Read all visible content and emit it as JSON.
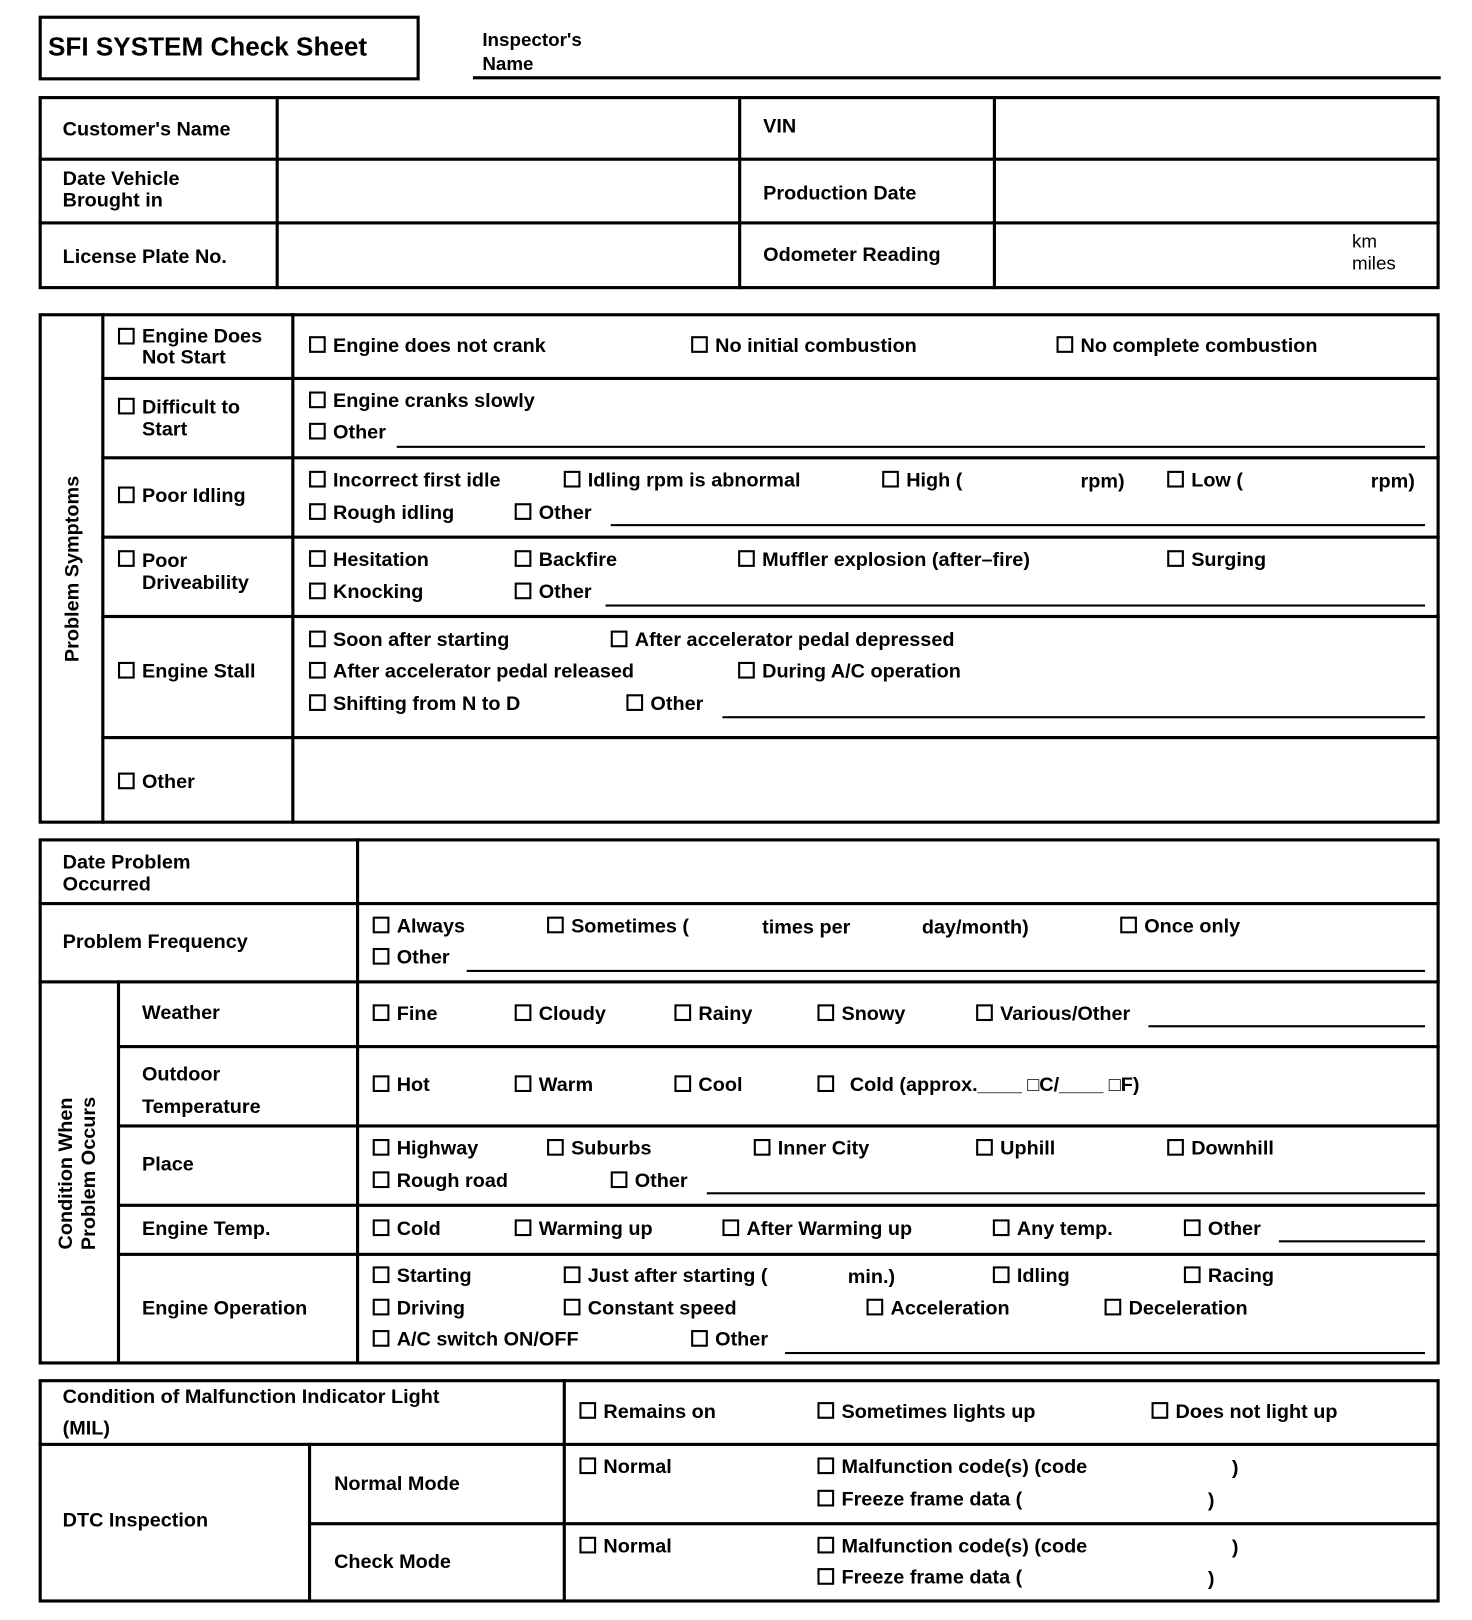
{
  "header": {
    "title": "SFI SYSTEM Check Sheet",
    "inspector_label": "Inspector's\nName"
  },
  "vehicle": {
    "customer_name": "Customer's Name",
    "vin": "VIN",
    "date_brought_in": "Date Vehicle\nBrought in",
    "production_date": "Production Date",
    "license_plate": "License Plate No.",
    "odometer": "Odometer Reading",
    "odometer_units": "km\nmiles"
  },
  "symptoms": {
    "section_label": "Problem Symptoms",
    "does_not_start": {
      "label": "Engine Does\nNot Start",
      "items": [
        "Engine does not crank",
        "No initial combustion",
        "No complete combustion"
      ]
    },
    "difficult_start": {
      "label": "Difficult to\nStart",
      "items": [
        "Engine cranks slowly",
        "Other"
      ]
    },
    "poor_idling": {
      "label": "Poor Idling",
      "items": [
        "Incorrect first idle",
        "Idling rpm is abnormal",
        "High (",
        "rpm)",
        "Low (",
        "rpm)",
        "Rough idling",
        "Other"
      ]
    },
    "poor_driveability": {
      "label": "Poor\nDriveability",
      "items": [
        "Hesitation",
        "Backfire",
        "Muffler explosion (after–fire)",
        "Surging",
        "Knocking",
        "Other"
      ]
    },
    "engine_stall": {
      "label": "Engine Stall",
      "items": [
        "Soon after starting",
        "After accelerator pedal depressed",
        "After accelerator pedal released",
        "During A/C operation",
        "Shifting from N to D",
        "Other"
      ]
    },
    "other": {
      "label": "Other"
    }
  },
  "occurrence": {
    "date_label": "Date Problem\nOccurred",
    "frequency": {
      "label": "Problem Frequency",
      "items": [
        "Always",
        "Sometimes (",
        "times per",
        "day/month)",
        "Once only",
        "Other"
      ]
    },
    "condition_label": "Condition When\nProblem Occurs",
    "weather": {
      "label": "Weather",
      "items": [
        "Fine",
        "Cloudy",
        "Rainy",
        "Snowy",
        "Various/Other"
      ]
    },
    "outdoor_temp": {
      "label": "Outdoor\nTemperature",
      "items": [
        "Hot",
        "Warm",
        "Cool",
        "Cold (approx.____ □C/____ □F)"
      ]
    },
    "place": {
      "label": "Place",
      "items": [
        "Highway",
        "Suburbs",
        "Inner City",
        "Uphill",
        "Downhill",
        "Rough road",
        "Other"
      ]
    },
    "engine_temp": {
      "label": "Engine Temp.",
      "items": [
        "Cold",
        "Warming up",
        "After Warming up",
        "Any temp.",
        "Other"
      ]
    },
    "engine_operation": {
      "label": "Engine Operation",
      "items": [
        "Starting",
        "Just after starting (",
        "min.)",
        "Idling",
        "Racing",
        "Driving",
        "Constant speed",
        "Acceleration",
        "Deceleration",
        "A/C switch ON/OFF",
        "Other"
      ]
    }
  },
  "mil": {
    "label": "Condition of Malfunction Indicator Light\n(MIL)",
    "items": [
      "Remains on",
      "Sometimes lights up",
      "Does not light up"
    ]
  },
  "dtc": {
    "label": "DTC Inspection",
    "normal_mode": {
      "label": "Normal Mode",
      "items": [
        "Normal",
        "Malfunction code(s) (code",
        ")",
        "Freeze frame data (",
        ")"
      ]
    },
    "check_mode": {
      "label": "Check Mode",
      "items": [
        "Normal",
        "Malfunction code(s) (code",
        ")",
        "Freeze frame data (",
        ")"
      ]
    }
  }
}
